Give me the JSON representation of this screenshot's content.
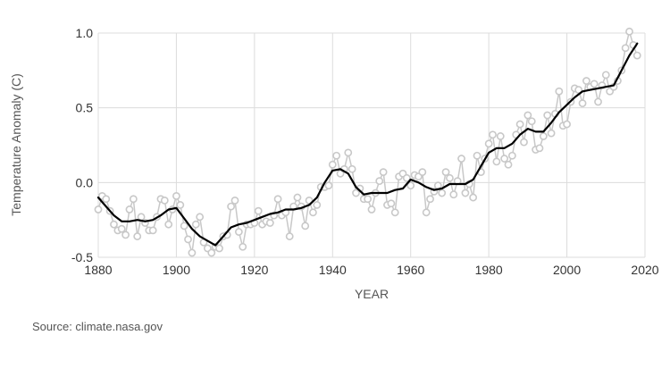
{
  "chart_data": {
    "type": "line",
    "title": "",
    "xlabel": "YEAR",
    "ylabel": "Temperature Anomaly (C)",
    "xlim": [
      1880,
      2020
    ],
    "ylim": [
      -0.5,
      1.0
    ],
    "x_ticks": [
      "1880",
      "1900",
      "1920",
      "1940",
      "1960",
      "1980",
      "2000",
      "2020"
    ],
    "y_ticks": [
      "1.0",
      "0.5",
      "0.0",
      "-0.5"
    ],
    "grid": true,
    "series": [
      {
        "style": "annual-mean-points",
        "color": "#c8c8c8",
        "x": [
          1880,
          1881,
          1882,
          1883,
          1884,
          1885,
          1886,
          1887,
          1888,
          1889,
          1890,
          1891,
          1892,
          1893,
          1894,
          1895,
          1896,
          1897,
          1898,
          1899,
          1900,
          1901,
          1902,
          1903,
          1904,
          1905,
          1906,
          1907,
          1908,
          1909,
          1910,
          1911,
          1912,
          1913,
          1914,
          1915,
          1916,
          1917,
          1918,
          1919,
          1920,
          1921,
          1922,
          1923,
          1924,
          1925,
          1926,
          1927,
          1928,
          1929,
          1930,
          1931,
          1932,
          1933,
          1934,
          1935,
          1936,
          1937,
          1938,
          1939,
          1940,
          1941,
          1942,
          1943,
          1944,
          1945,
          1946,
          1947,
          1948,
          1949,
          1950,
          1951,
          1952,
          1953,
          1954,
          1955,
          1956,
          1957,
          1958,
          1959,
          1960,
          1961,
          1962,
          1963,
          1964,
          1965,
          1966,
          1967,
          1968,
          1969,
          1970,
          1971,
          1972,
          1973,
          1974,
          1975,
          1976,
          1977,
          1978,
          1979,
          1980,
          1981,
          1982,
          1983,
          1984,
          1985,
          1986,
          1987,
          1988,
          1989,
          1990,
          1991,
          1992,
          1993,
          1994,
          1995,
          1996,
          1997,
          1998,
          1999,
          2000,
          2001,
          2002,
          2003,
          2004,
          2005,
          2006,
          2007,
          2008,
          2009,
          2010,
          2011,
          2012,
          2013,
          2014,
          2015,
          2016,
          2017,
          2018
        ],
        "values": [
          -0.18,
          -0.09,
          -0.11,
          -0.19,
          -0.28,
          -0.32,
          -0.31,
          -0.35,
          -0.18,
          -0.11,
          -0.36,
          -0.23,
          -0.27,
          -0.32,
          -0.32,
          -0.23,
          -0.11,
          -0.12,
          -0.28,
          -0.18,
          -0.09,
          -0.15,
          -0.29,
          -0.38,
          -0.47,
          -0.28,
          -0.23,
          -0.4,
          -0.44,
          -0.47,
          -0.43,
          -0.44,
          -0.36,
          -0.35,
          -0.16,
          -0.12,
          -0.33,
          -0.43,
          -0.28,
          -0.28,
          -0.27,
          -0.19,
          -0.28,
          -0.26,
          -0.27,
          -0.22,
          -0.11,
          -0.22,
          -0.2,
          -0.36,
          -0.16,
          -0.1,
          -0.16,
          -0.29,
          -0.12,
          -0.2,
          -0.15,
          -0.03,
          -0.03,
          -0.02,
          0.12,
          0.18,
          0.06,
          0.09,
          0.2,
          0.09,
          -0.07,
          -0.04,
          -0.11,
          -0.11,
          -0.18,
          -0.07,
          0.01,
          0.07,
          -0.15,
          -0.14,
          -0.2,
          0.04,
          0.06,
          0.03,
          -0.02,
          0.05,
          0.04,
          0.07,
          -0.2,
          -0.11,
          -0.06,
          -0.02,
          -0.07,
          0.07,
          0.03,
          -0.08,
          0.01,
          0.16,
          -0.07,
          -0.01,
          -0.1,
          0.18,
          0.07,
          0.16,
          0.26,
          0.32,
          0.14,
          0.31,
          0.16,
          0.12,
          0.18,
          0.32,
          0.39,
          0.27,
          0.45,
          0.41,
          0.22,
          0.23,
          0.31,
          0.45,
          0.33,
          0.46,
          0.61,
          0.38,
          0.39,
          0.54,
          0.63,
          0.62,
          0.53,
          0.68,
          0.64,
          0.66,
          0.54,
          0.65,
          0.72,
          0.61,
          0.64,
          0.68,
          0.75,
          0.9,
          1.01,
          0.92,
          0.85
        ]
      },
      {
        "style": "lowess-smoothing",
        "color": "#000000",
        "x": [
          1880,
          1882,
          1884,
          1886,
          1888,
          1890,
          1892,
          1894,
          1896,
          1898,
          1900,
          1902,
          1904,
          1906,
          1908,
          1910,
          1912,
          1914,
          1916,
          1918,
          1920,
          1922,
          1924,
          1926,
          1928,
          1930,
          1932,
          1934,
          1936,
          1938,
          1940,
          1942,
          1944,
          1946,
          1948,
          1950,
          1952,
          1954,
          1956,
          1958,
          1960,
          1962,
          1964,
          1966,
          1968,
          1970,
          1972,
          1974,
          1976,
          1978,
          1980,
          1982,
          1984,
          1986,
          1988,
          1990,
          1992,
          1994,
          1996,
          1998,
          2000,
          2002,
          2004,
          2006,
          2008,
          2010,
          2012,
          2014,
          2016,
          2018
        ],
        "values": [
          -0.1,
          -0.16,
          -0.22,
          -0.26,
          -0.26,
          -0.25,
          -0.26,
          -0.25,
          -0.22,
          -0.18,
          -0.17,
          -0.24,
          -0.31,
          -0.36,
          -0.39,
          -0.42,
          -0.36,
          -0.3,
          -0.28,
          -0.27,
          -0.25,
          -0.23,
          -0.21,
          -0.2,
          -0.18,
          -0.18,
          -0.17,
          -0.15,
          -0.1,
          0.0,
          0.08,
          0.09,
          0.06,
          -0.03,
          -0.08,
          -0.07,
          -0.07,
          -0.07,
          -0.05,
          -0.04,
          0.02,
          0.0,
          -0.03,
          -0.05,
          -0.04,
          -0.01,
          -0.01,
          -0.01,
          0.02,
          0.11,
          0.2,
          0.23,
          0.23,
          0.26,
          0.32,
          0.36,
          0.34,
          0.34,
          0.4,
          0.47,
          0.52,
          0.57,
          0.61,
          0.62,
          0.63,
          0.64,
          0.65,
          0.75,
          0.85,
          0.93
        ]
      }
    ]
  },
  "source_text": "Source: climate.nasa.gov"
}
